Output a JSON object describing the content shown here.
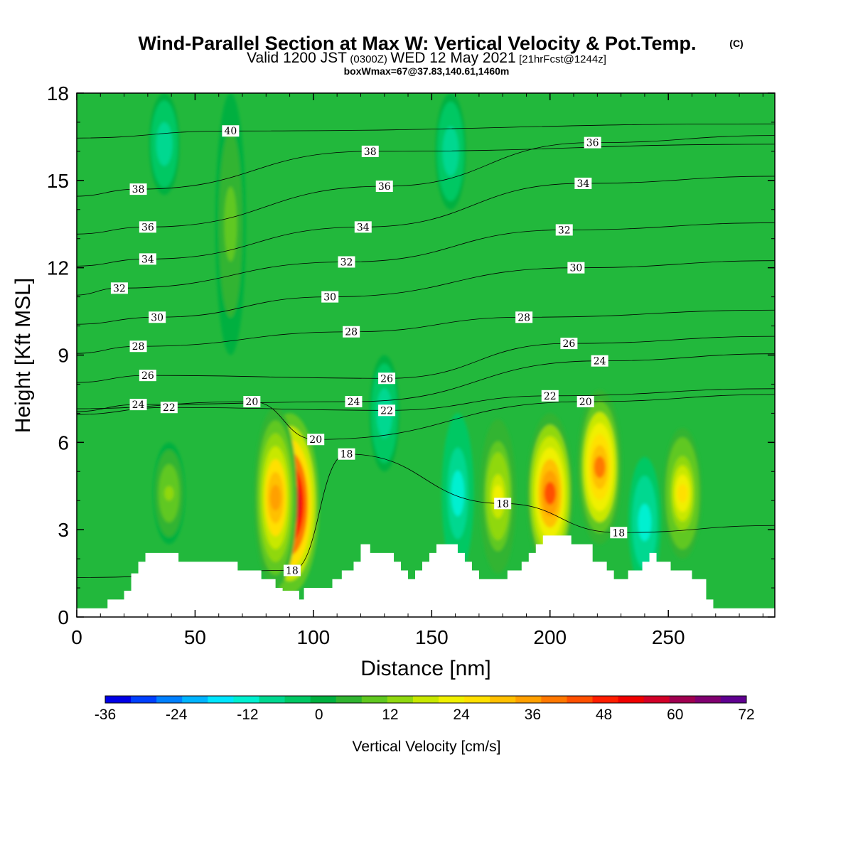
{
  "title": {
    "main": "Wind-Parallel Section at Max W: Vertical Velocity & Pot.Temp.",
    "copyright": "(C)",
    "valid_a": "Valid 1200 JST",
    "valid_b": "(0300Z)",
    "valid_c": "WED 12 May 2021",
    "valid_d": "[21hrFcst@1244z]",
    "box": "boxWmax=67@37.83,140.61,1460m"
  },
  "chart_data": {
    "type": "heatmap",
    "xlabel": "Distance [nm]",
    "ylabel": "Height [Kft MSL]",
    "xlim": [
      0,
      295
    ],
    "ylim": [
      0,
      18
    ],
    "x_ticks": [
      "0",
      "50",
      "100",
      "150",
      "200",
      "250"
    ],
    "y_ticks": [
      "0",
      "3",
      "6",
      "9",
      "12",
      "15",
      "18"
    ],
    "x_tick_values": [
      0,
      50,
      100,
      150,
      200,
      250
    ],
    "y_tick_values": [
      0,
      3,
      6,
      9,
      12,
      15,
      18
    ],
    "grid": false,
    "colorbar": {
      "label": "Vertical Velocity [cm/s]",
      "labels": [
        "-36",
        "-24",
        "-12",
        "0",
        "12",
        "24",
        "36",
        "48",
        "60",
        "72"
      ],
      "label_values": [
        -36,
        -24,
        -12,
        0,
        12,
        24,
        36,
        48,
        60,
        72
      ],
      "colors": [
        "#0000e6",
        "#0040ff",
        "#0080ff",
        "#00b4ff",
        "#00e6ff",
        "#00f0d0",
        "#00d890",
        "#00c864",
        "#00b040",
        "#30b430",
        "#60c820",
        "#90d810",
        "#c8e800",
        "#f0f000",
        "#ffe000",
        "#ffc000",
        "#ffa000",
        "#ff7800",
        "#ff5000",
        "#ff1e00",
        "#f00000",
        "#d20028",
        "#a00050",
        "#800070",
        "#600090"
      ]
    },
    "updraft_cores": [
      {
        "x": 90,
        "z_bottom": 0.8,
        "z_top": 7.0,
        "max_w": 67
      },
      {
        "x": 84,
        "z_bottom": 1.0,
        "z_top": 7.2,
        "max_w": 35
      },
      {
        "x": 200,
        "z_bottom": 1.5,
        "z_top": 7.0,
        "max_w": 42
      },
      {
        "x": 221,
        "z_bottom": 2.5,
        "z_top": 7.8,
        "max_w": 38
      },
      {
        "x": 178,
        "z_bottom": 1.5,
        "z_top": 6.8,
        "max_w": 22
      },
      {
        "x": 256,
        "z_bottom": 2.0,
        "z_top": 6.5,
        "max_w": 26
      },
      {
        "x": 39,
        "z_bottom": 2.5,
        "z_top": 6.0,
        "max_w": 13
      },
      {
        "x": 65,
        "z_bottom": 9.0,
        "z_top": 18.0,
        "max_w": 10
      }
    ],
    "downdraft_cores": [
      {
        "x": 37,
        "z_bottom": 14.5,
        "z_top": 18.0,
        "min_w": -10
      },
      {
        "x": 161,
        "z_bottom": 1.5,
        "z_top": 7.0,
        "min_w": -13
      },
      {
        "x": 240,
        "z_bottom": 1.0,
        "z_top": 5.5,
        "min_w": -14
      },
      {
        "x": 130,
        "z_bottom": 5.0,
        "z_top": 9.0,
        "min_w": -9
      },
      {
        "x": 158,
        "z_bottom": 14.0,
        "z_top": 18.0,
        "min_w": -10
      }
    ],
    "theta_contours": [
      {
        "label": "40",
        "x": 65,
        "z": 16.7
      },
      {
        "label": "38",
        "x": 26,
        "z": 14.7
      },
      {
        "label": "38",
        "x": 124,
        "z": 16.0
      },
      {
        "label": "36",
        "x": 30,
        "z": 13.4
      },
      {
        "label": "36",
        "x": 130,
        "z": 14.8
      },
      {
        "label": "36",
        "x": 218,
        "z": 16.3
      },
      {
        "label": "34",
        "x": 30,
        "z": 12.3
      },
      {
        "label": "34",
        "x": 121,
        "z": 13.4
      },
      {
        "label": "34",
        "x": 214,
        "z": 14.9
      },
      {
        "label": "32",
        "x": 18,
        "z": 11.3
      },
      {
        "label": "32",
        "x": 114,
        "z": 12.2
      },
      {
        "label": "32",
        "x": 206,
        "z": 13.3
      },
      {
        "label": "30",
        "x": 34,
        "z": 10.3
      },
      {
        "label": "30",
        "x": 107,
        "z": 11.0
      },
      {
        "label": "30",
        "x": 211,
        "z": 12.0
      },
      {
        "label": "28",
        "x": 26,
        "z": 9.3
      },
      {
        "label": "28",
        "x": 116,
        "z": 9.8
      },
      {
        "label": "28",
        "x": 189,
        "z": 10.3
      },
      {
        "label": "26",
        "x": 30,
        "z": 8.3
      },
      {
        "label": "26",
        "x": 131,
        "z": 8.2
      },
      {
        "label": "26",
        "x": 208,
        "z": 9.4
      },
      {
        "label": "24",
        "x": 26,
        "z": 7.3
      },
      {
        "label": "24",
        "x": 117,
        "z": 7.4
      },
      {
        "label": "24",
        "x": 221,
        "z": 8.8
      },
      {
        "label": "22",
        "x": 39,
        "z": 7.2
      },
      {
        "label": "22",
        "x": 131,
        "z": 7.1
      },
      {
        "label": "22",
        "x": 200,
        "z": 7.6
      },
      {
        "label": "20",
        "x": 74,
        "z": 7.4
      },
      {
        "label": "20",
        "x": 101,
        "z": 6.1
      },
      {
        "label": "20",
        "x": 215,
        "z": 7.4
      },
      {
        "label": "18",
        "x": 114,
        "z": 5.6
      },
      {
        "label": "18",
        "x": 180,
        "z": 3.9
      },
      {
        "label": "18",
        "x": 91,
        "z": 1.6
      },
      {
        "label": "18",
        "x": 229,
        "z": 2.9
      }
    ],
    "terrain": {
      "x": [
        0,
        13,
        13,
        20,
        20,
        23,
        23,
        26,
        26,
        29,
        29,
        43,
        43,
        68,
        68,
        78,
        78,
        84,
        84,
        87,
        87,
        94,
        94,
        96,
        96,
        108,
        108,
        112,
        112,
        117,
        117,
        120,
        120,
        124,
        124,
        134,
        134,
        137,
        137,
        140,
        140,
        143,
        143,
        146,
        146,
        149,
        149,
        152,
        152,
        161,
        161,
        164,
        164,
        167,
        167,
        170,
        170,
        176,
        176,
        182,
        182,
        188,
        188,
        191,
        191,
        194,
        194,
        197,
        197,
        206,
        206,
        209,
        209,
        218,
        218,
        224,
        224,
        227,
        227,
        233,
        233,
        239,
        239,
        242,
        242,
        245,
        245,
        251,
        251,
        260,
        260,
        266,
        266,
        269,
        269,
        272,
        272,
        290,
        290,
        295
      ],
      "z": [
        0.3,
        0.3,
        0.6,
        0.6,
        0.9,
        0.9,
        1.5,
        1.5,
        1.9,
        1.9,
        2.2,
        2.2,
        1.9,
        1.9,
        1.6,
        1.6,
        1.3,
        1.3,
        1.0,
        1.0,
        0.9,
        0.9,
        0.6,
        0.6,
        1.0,
        1.0,
        1.3,
        1.3,
        1.6,
        1.6,
        1.9,
        1.9,
        2.5,
        2.5,
        2.2,
        2.2,
        1.9,
        1.9,
        1.6,
        1.6,
        1.3,
        1.3,
        1.6,
        1.6,
        1.9,
        1.9,
        2.2,
        2.2,
        2.5,
        2.5,
        2.2,
        2.2,
        1.9,
        1.9,
        1.6,
        1.6,
        1.3,
        1.3,
        1.3,
        1.3,
        1.6,
        1.6,
        1.9,
        1.9,
        2.2,
        2.2,
        2.5,
        2.5,
        2.8,
        2.8,
        2.8,
        2.8,
        2.5,
        2.5,
        1.9,
        1.9,
        1.6,
        1.6,
        1.3,
        1.3,
        1.6,
        1.6,
        1.9,
        1.9,
        2.2,
        2.2,
        1.9,
        1.9,
        1.6,
        1.6,
        1.3,
        1.3,
        0.6,
        0.6,
        0.3,
        0.3,
        0.3,
        0.3,
        0.3,
        0.3
      ]
    }
  }
}
